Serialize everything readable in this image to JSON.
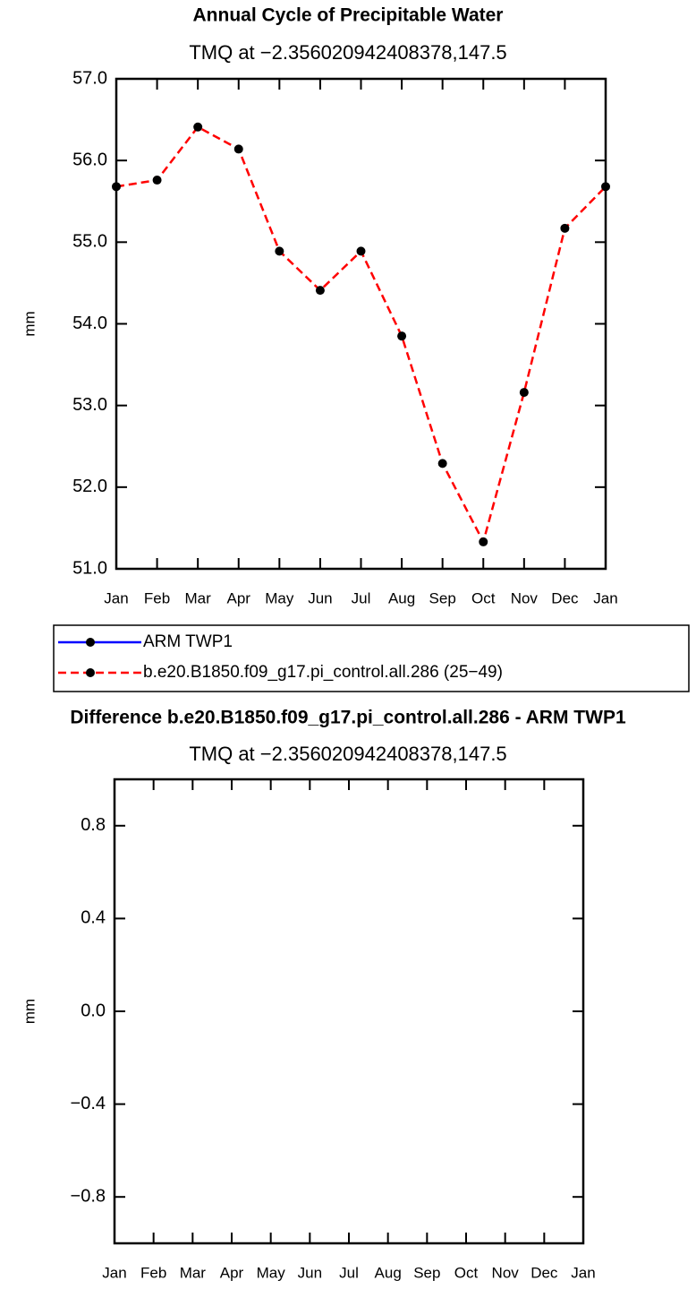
{
  "chart_data": [
    {
      "type": "line",
      "title": "Annual Cycle of Precipitable Water",
      "subtitle": "TMQ at −2.356020942408378,147.5",
      "y_label": "mm",
      "categories": [
        "Jan",
        "Feb",
        "Mar",
        "Apr",
        "May",
        "Jun",
        "Jul",
        "Aug",
        "Sep",
        "Oct",
        "Nov",
        "Dec",
        "Jan"
      ],
      "series": [
        {
          "name": "ARM TWP1",
          "color": "#0000ff",
          "line_style": "solid",
          "marker": "circle"
        },
        {
          "name": "b.e20.B1850.f09_g17.pi_control.all.286 (25−49)",
          "color": "#ff0000",
          "line_style": "dashed",
          "marker": "circle",
          "values": [
            55.68,
            55.76,
            56.41,
            56.14,
            54.89,
            54.41,
            54.89,
            53.85,
            52.29,
            51.33,
            53.16,
            55.17,
            55.68
          ]
        }
      ],
      "ylim": [
        51,
        57
      ],
      "yticks": [
        {
          "value": 51,
          "label": "51.0"
        },
        {
          "value": 52,
          "label": "52.0"
        },
        {
          "value": 53,
          "label": "53.0"
        },
        {
          "value": 54,
          "label": "54.0"
        },
        {
          "value": 55,
          "label": "55.0"
        },
        {
          "value": 56,
          "label": "56.0"
        },
        {
          "value": 57,
          "label": "57.0"
        }
      ],
      "legend": "below"
    },
    {
      "type": "line",
      "title": "Difference b.e20.B1850.f09_g17.pi_control.all.286 - ARM TWP1",
      "subtitle": "TMQ at −2.356020942408378,147.5",
      "y_label": "mm",
      "categories": [
        "Jan",
        "Feb",
        "Mar",
        "Apr",
        "May",
        "Jun",
        "Jul",
        "Aug",
        "Sep",
        "Oct",
        "Nov",
        "Dec",
        "Jan"
      ],
      "series": [],
      "ylim": [
        -1,
        1
      ],
      "yticks": [
        {
          "value": -0.8,
          "label": "−0.8"
        },
        {
          "value": -0.4,
          "label": "−0.4"
        },
        {
          "value": 0,
          "label": "0.0"
        },
        {
          "value": 0.4,
          "label": "0.4"
        },
        {
          "value": 0.8,
          "label": "0.8"
        }
      ]
    }
  ]
}
